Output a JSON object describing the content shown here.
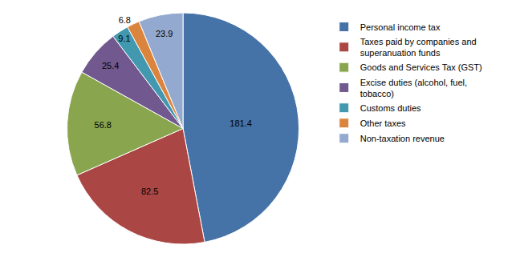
{
  "chart_data": {
    "type": "pie",
    "categories": [
      "Personal income tax",
      "Taxes paid by companies and superanuation funds",
      "Goods and Services Tax (GST)",
      "Excise duties (alcohol, fuel, tobacco)",
      "Customs duties",
      "Other taxes",
      "Non-taxation revenue"
    ],
    "values": [
      181.4,
      82.5,
      56.8,
      25.4,
      9.1,
      6.8,
      23.9
    ],
    "colors": [
      "#4572A7",
      "#AA4643",
      "#89A54E",
      "#71588F",
      "#4198AF",
      "#DB843D",
      "#93A9CF"
    ],
    "data_labels": true,
    "legend": "right"
  }
}
